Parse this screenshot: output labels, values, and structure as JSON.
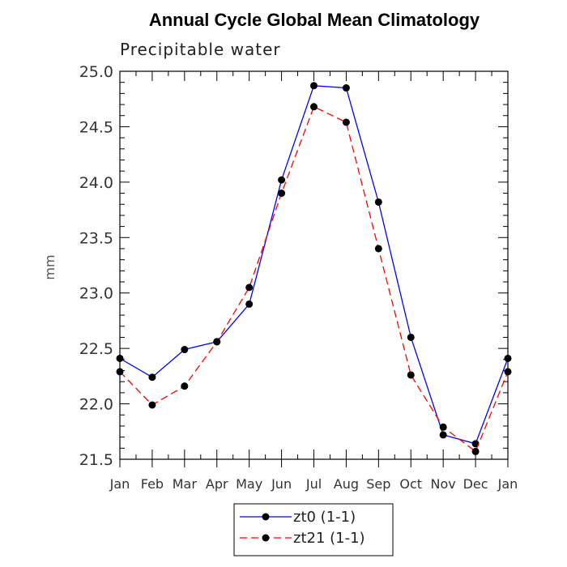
{
  "chart_data": {
    "type": "line",
    "title": "Annual Cycle Global Mean Climatology",
    "subtitle": "Precipitable water",
    "xlabel": "",
    "ylabel": "mm",
    "categories": [
      "Jan",
      "Feb",
      "Mar",
      "Apr",
      "May",
      "Jun",
      "Jul",
      "Aug",
      "Sep",
      "Oct",
      "Nov",
      "Dec",
      "Jan"
    ],
    "ylim": [
      21.5,
      25.0
    ],
    "yticks": [
      "21.5",
      "22.0",
      "22.5",
      "23.0",
      "23.5",
      "24.0",
      "24.5",
      "25.0"
    ],
    "grid": false,
    "legend_position": "bottom",
    "series": [
      {
        "name": "zt0 (1-1)",
        "color": "#0000ff",
        "line_style": "solid",
        "values": [
          22.41,
          22.24,
          22.49,
          22.56,
          22.9,
          24.02,
          24.87,
          24.85,
          23.82,
          22.6,
          21.72,
          21.64,
          22.41
        ]
      },
      {
        "name": "zt21 (1-1)",
        "color": "#ff0000",
        "line_style": "dashed",
        "values": [
          22.29,
          21.99,
          22.16,
          22.56,
          23.05,
          23.9,
          24.68,
          24.54,
          23.4,
          22.26,
          21.79,
          21.57,
          22.29
        ]
      }
    ]
  }
}
